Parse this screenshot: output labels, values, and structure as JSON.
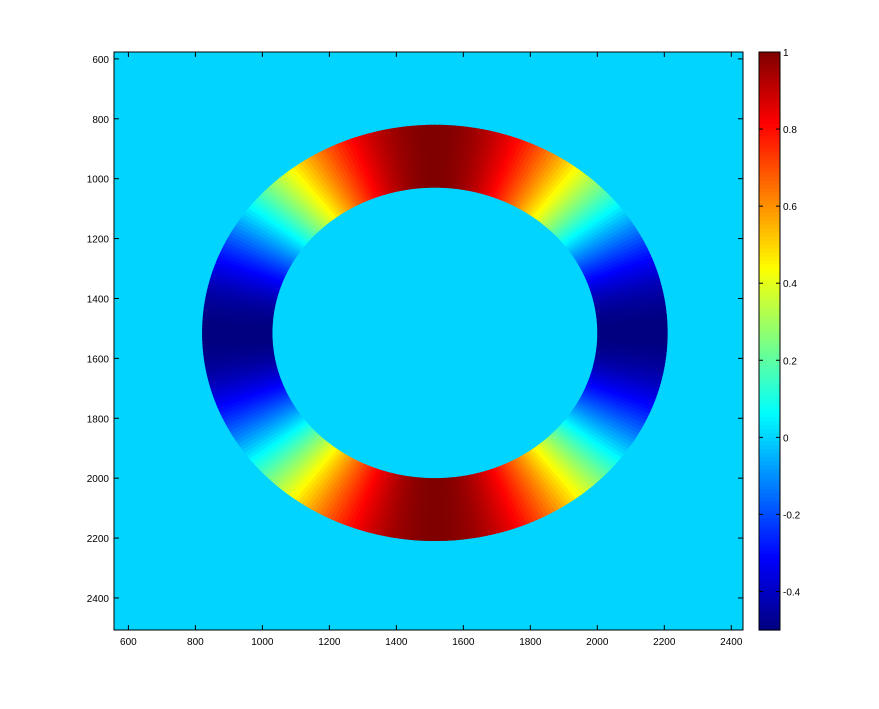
{
  "chart_data": {
    "type": "heatmap",
    "title": "",
    "xlabel": "",
    "ylabel": "",
    "xlim": [
      557,
      2435
    ],
    "ylim": [
      577,
      2507
    ],
    "y_reversed": true,
    "x_ticks": [
      600,
      800,
      1000,
      1200,
      1400,
      1600,
      1800,
      2000,
      2200,
      2400
    ],
    "y_ticks": [
      600,
      800,
      1000,
      1200,
      1400,
      1600,
      1800,
      2000,
      2200,
      2400
    ],
    "background_value": 0,
    "annulus": {
      "center": [
        1515,
        1515
      ],
      "inner_radius_x": 485,
      "inner_radius_y": 485,
      "outer_radius_x": 695,
      "outer_radius_y": 695,
      "value_function": "cos(2*theta) pattern: max 1 at top/bottom, min about -0.5 at left/right",
      "value_at_top": 1,
      "value_at_bottom": 1,
      "value_at_left": -0.5,
      "value_at_right": -0.5,
      "zero_crossing_angles_deg": [
        35,
        145,
        215,
        325
      ]
    },
    "colorbar": {
      "colormap": "jet",
      "clim": [
        -0.5,
        1
      ],
      "ticks": [
        1,
        0.8,
        0.6,
        0.4,
        0.2,
        0,
        -0.2,
        -0.4
      ],
      "tick_labels": [
        "1",
        "0.8",
        "0.6",
        "0.4",
        "0.2",
        "0",
        "-0.2",
        "-0.4"
      ]
    }
  }
}
